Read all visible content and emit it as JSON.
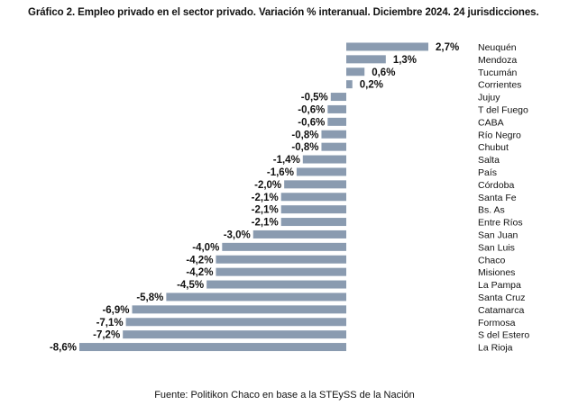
{
  "title": "Gráfico 2. Empleo privado en el sector privado. Variación % interanual. Diciembre 2024. 24 jurisdicciones.",
  "source": "Fuente: Politikon Chaco en base a la STEySS de la Nación",
  "colors": {
    "bar": "#8a9bb0",
    "text": "#111111",
    "axis": "#ffffff"
  },
  "chart_data": {
    "type": "bar",
    "orientation": "horizontal",
    "title": "Gráfico 2. Empleo privado en el sector privado. Variación % interanual. Diciembre 2024. 24 jurisdicciones.",
    "unit": "%",
    "categories": [
      "Neuquén",
      "Mendoza",
      "Tucumán",
      "Corrientes",
      "Jujuy",
      "T del Fuego",
      "CABA",
      "Río Negro",
      "Chubut",
      "Salta",
      "País",
      "Córdoba",
      "Santa Fe",
      "Bs. As",
      "Entre Ríos",
      "San Juan",
      "San Luis",
      "Chaco",
      "Misiones",
      "La Pampa",
      "Santa Cruz",
      "Catamarca",
      "Formosa",
      "S del Estero",
      "La Rioja"
    ],
    "values": [
      2.7,
      1.3,
      0.6,
      0.2,
      -0.5,
      -0.6,
      -0.6,
      -0.8,
      -0.8,
      -1.4,
      -1.6,
      -2.0,
      -2.1,
      -2.1,
      -2.1,
      -3.0,
      -4.0,
      -4.2,
      -4.2,
      -4.5,
      -5.8,
      -6.9,
      -7.1,
      -7.2,
      -8.6
    ],
    "labels": [
      "2,7%",
      "1,3%",
      "0,6%",
      "0,2%",
      "-0,5%",
      "-0,6%",
      "-0,6%",
      "-0,8%",
      "-0,8%",
      "-1,4%",
      "-1,6%",
      "-2,0%",
      "-2,1%",
      "-2,1%",
      "-2,1%",
      "-3,0%",
      "-4,0%",
      "-4,2%",
      "-4,2%",
      "-4,5%",
      "-5,8%",
      "-6,9%",
      "-7,1%",
      "-7,2%",
      "-8,6%"
    ],
    "xlim": [
      -8.6,
      2.7
    ],
    "grid": false,
    "legend": "none"
  }
}
